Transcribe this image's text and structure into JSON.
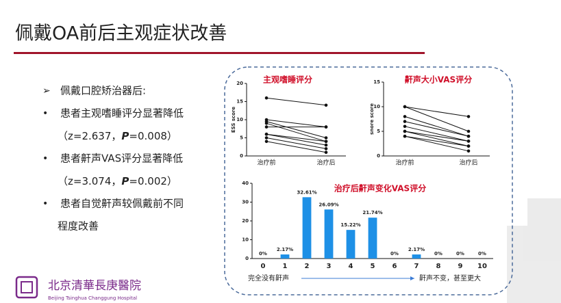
{
  "title": "佩戴OA前后主观症状改善",
  "bullets": [
    {
      "marker": "➢",
      "lines": [
        {
          "text": "佩戴口腔矫治器后:"
        }
      ]
    },
    {
      "marker": "•",
      "lines": [
        {
          "text": "患者主观嗜睡评分显著降低"
        },
        {
          "pre": "（z=2.637，",
          "p": "P",
          "post": "=0.008）"
        }
      ]
    },
    {
      "marker": "•",
      "lines": [
        {
          "text": "患者鼾声VAS评分显著降低"
        },
        {
          "pre": "（z=3.074，",
          "p": "P",
          "post": "=0.002）"
        }
      ]
    },
    {
      "marker": "•",
      "lines": [
        {
          "text": "患者自觉鼾声较佩戴前不同"
        },
        {
          "text": "程度改善"
        }
      ]
    }
  ],
  "logo": {
    "name": "北京清華長庚醫院",
    "english": "Beijing Tsinghua Changgung Hospital"
  },
  "chart_data": [
    {
      "type": "line",
      "title": "主观嗜睡评分",
      "ylabel": "ESS score",
      "categories": [
        "治疗前",
        "治疗后"
      ],
      "ylim": [
        0,
        20
      ],
      "yticks": [
        0,
        5,
        10,
        15,
        20
      ],
      "series": [
        {
          "color": "#111",
          "values": [
            16,
            14
          ]
        },
        {
          "color": "#111",
          "values": [
            10,
            8
          ]
        },
        {
          "color": "#111",
          "values": [
            9.5,
            5
          ]
        },
        {
          "color": "#111",
          "values": [
            9,
            4
          ]
        },
        {
          "color": "#111",
          "values": [
            8,
            8
          ]
        },
        {
          "color": "#111",
          "values": [
            6,
            3
          ]
        },
        {
          "color": "#111",
          "values": [
            5,
            2
          ]
        },
        {
          "color": "#111",
          "values": [
            4,
            1
          ]
        },
        {
          "color": "#111",
          "values": [
            6,
            4
          ]
        }
      ]
    },
    {
      "type": "line",
      "title": "鼾声大小VAS评分",
      "ylabel": "snore score",
      "categories": [
        "治疗前",
        "治疗后"
      ],
      "ylim": [
        0,
        15
      ],
      "yticks": [
        0,
        5,
        10,
        15
      ],
      "series": [
        {
          "color": "#111",
          "values": [
            10,
            8
          ]
        },
        {
          "color": "#111",
          "values": [
            10,
            5
          ]
        },
        {
          "color": "#111",
          "values": [
            8,
            4
          ]
        },
        {
          "color": "#111",
          "values": [
            7,
            4
          ]
        },
        {
          "color": "#111",
          "values": [
            6,
            3
          ]
        },
        {
          "color": "#111",
          "values": [
            5,
            3
          ]
        },
        {
          "color": "#111",
          "values": [
            5,
            2
          ]
        },
        {
          "color": "#111",
          "values": [
            4,
            2
          ]
        },
        {
          "color": "#111",
          "values": [
            4,
            1
          ]
        }
      ]
    },
    {
      "type": "bar",
      "title": "治疗后鼾声变化VAS评分",
      "color": "#1e90e6",
      "categories": [
        "0",
        "1",
        "2",
        "3",
        "4",
        "5",
        "6",
        "7",
        "8",
        "9",
        "10"
      ],
      "values": [
        0,
        2.17,
        32.61,
        26.09,
        15.22,
        21.74,
        0,
        2.17,
        0,
        0,
        0
      ],
      "value_labels": [
        "0%",
        "2.17%",
        "32.61%",
        "26.09%",
        "15.22%",
        "21.74%",
        "0%",
        "2.17%",
        "0%",
        "0%",
        "0%"
      ],
      "ylim": [
        0,
        40
      ],
      "yticks": [
        0,
        10,
        20,
        30,
        40
      ],
      "annotations": [
        "完全没有鼾声",
        "鼾声不变，甚至更大"
      ]
    }
  ]
}
